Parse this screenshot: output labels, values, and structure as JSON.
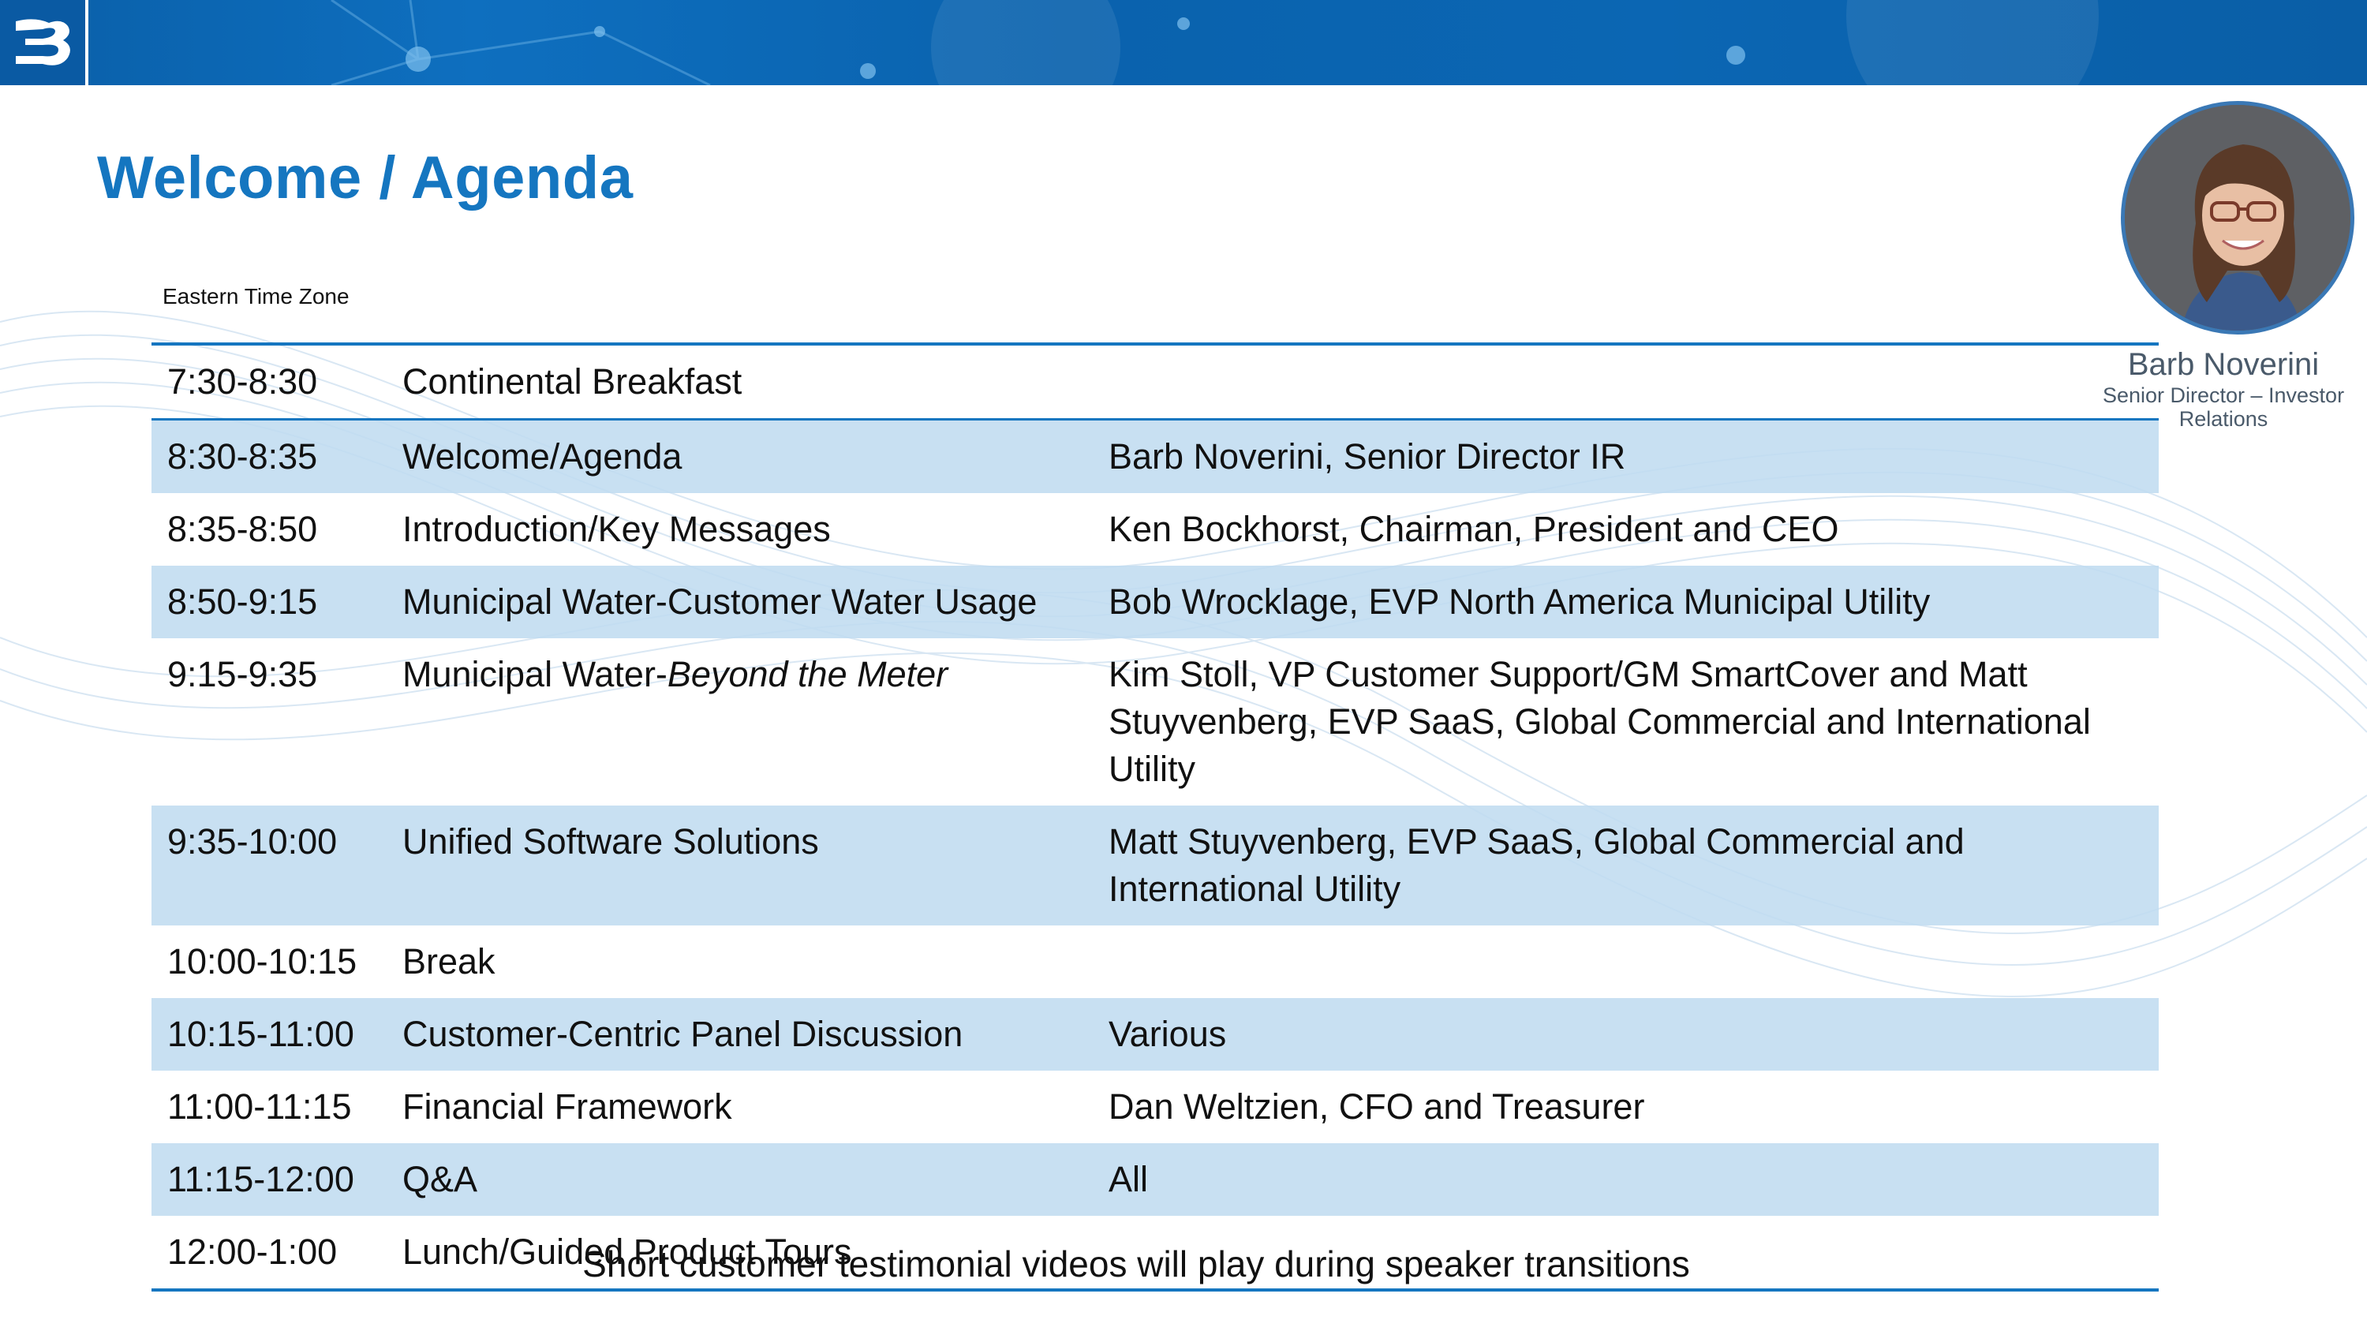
{
  "header": {
    "logo_icon": "badger-meter-b-logo-icon"
  },
  "slide": {
    "title": "Welcome / Agenda",
    "timezone": "Eastern Time Zone",
    "footer_note": "Short customer testimonial videos will play during speaker transitions"
  },
  "agenda": {
    "rows": [
      {
        "time": "7:30-8:30",
        "topic": "Continental Breakfast",
        "topic_italic": "",
        "speaker": ""
      },
      {
        "time": "8:30-8:35",
        "topic": "Welcome/Agenda",
        "topic_italic": "",
        "speaker": "Barb Noverini, Senior Director IR"
      },
      {
        "time": "8:35-8:50",
        "topic": "Introduction/Key Messages",
        "topic_italic": "",
        "speaker": "Ken Bockhorst, Chairman, President and CEO"
      },
      {
        "time": "8:50-9:15",
        "topic": "Municipal Water-Customer Water Usage",
        "topic_italic": "",
        "speaker": "Bob Wrocklage, EVP North America Municipal Utility"
      },
      {
        "time": "9:15-9:35",
        "topic": "Municipal Water-",
        "topic_italic": "Beyond the Meter",
        "speaker": "Kim Stoll, VP Customer Support/GM SmartCover and Matt Stuyvenberg, EVP SaaS, Global Commercial and International Utility"
      },
      {
        "time": "9:35-10:00",
        "topic": "Unified Software Solutions",
        "topic_italic": "",
        "speaker": "Matt Stuyvenberg, EVP SaaS, Global Commercial and International Utility"
      },
      {
        "time": "10:00-10:15",
        "topic": "Break",
        "topic_italic": "",
        "speaker": ""
      },
      {
        "time": "10:15-11:00",
        "topic": "Customer-Centric Panel Discussion",
        "topic_italic": "",
        "speaker": "Various"
      },
      {
        "time": "11:00-11:15",
        "topic": "Financial Framework",
        "topic_italic": "",
        "speaker": "Dan Weltzien, CFO and Treasurer"
      },
      {
        "time": "11:15-12:00",
        "topic": "Q&A",
        "topic_italic": "",
        "speaker": "All"
      },
      {
        "time": "12:00-1:00",
        "topic": "Lunch/Guided Product Tours",
        "topic_italic": "",
        "speaker": ""
      }
    ]
  },
  "presenter": {
    "photo_icon": "presenter-portrait",
    "name": "Barb Noverini",
    "role": "Senior Director – Investor Relations"
  },
  "colors": {
    "accent": "#1576c0",
    "row_shade": "#c7dff1",
    "banner": "#0a62ad"
  }
}
